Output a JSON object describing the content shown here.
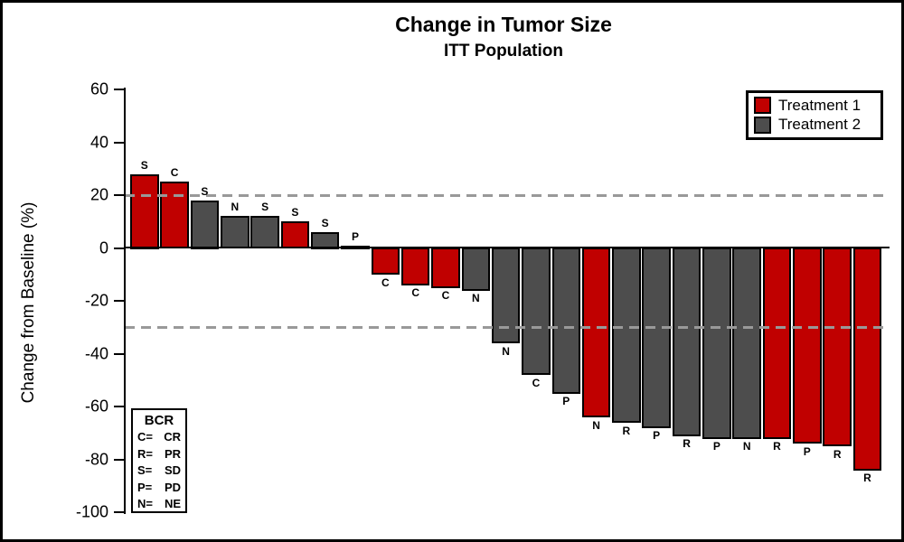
{
  "header": {
    "title": "Change in Tumor Size",
    "subtitle": "ITT Population"
  },
  "axes": {
    "y_label": "Change from Baseline (%)"
  },
  "legend": {
    "items": [
      {
        "label": "Treatment 1",
        "color": "#C00000"
      },
      {
        "label": "Treatment 2",
        "color": "#4D4D4D"
      }
    ]
  },
  "bcr_legend": {
    "title": "BCR",
    "rows": [
      {
        "code": "C=",
        "meaning": "CR"
      },
      {
        "code": "R=",
        "meaning": "PR"
      },
      {
        "code": "S=",
        "meaning": "SD"
      },
      {
        "code": "P=",
        "meaning": "PD"
      },
      {
        "code": "N=",
        "meaning": "NE"
      }
    ]
  },
  "chart_data": {
    "type": "bar",
    "title": "Change in Tumor Size",
    "subtitle": "ITT Population",
    "ylabel": "Change from Baseline (%)",
    "ylim": [
      -100,
      60
    ],
    "yticks": [
      60,
      40,
      20,
      0,
      -20,
      -40,
      -60,
      -80,
      -100
    ],
    "reference_lines": [
      20,
      -30
    ],
    "grid": "off",
    "legend_position": "top-right",
    "series_colors": {
      "Treatment 1": "#C00000",
      "Treatment 2": "#4D4D4D"
    },
    "bars": [
      {
        "label": "S",
        "value": 28,
        "treatment": "Treatment 1"
      },
      {
        "label": "C",
        "value": 25,
        "treatment": "Treatment 1"
      },
      {
        "label": "S",
        "value": 18,
        "treatment": "Treatment 2"
      },
      {
        "label": "N",
        "value": 12,
        "treatment": "Treatment 2"
      },
      {
        "label": "S",
        "value": 12,
        "treatment": "Treatment 2"
      },
      {
        "label": "S",
        "value": 10,
        "treatment": "Treatment 1"
      },
      {
        "label": "S",
        "value": 6,
        "treatment": "Treatment 2"
      },
      {
        "label": "P",
        "value": 1,
        "treatment": "Treatment 2"
      },
      {
        "label": "C",
        "value": -10,
        "treatment": "Treatment 1"
      },
      {
        "label": "C",
        "value": -14,
        "treatment": "Treatment 1"
      },
      {
        "label": "C",
        "value": -15,
        "treatment": "Treatment 1"
      },
      {
        "label": "N",
        "value": -16,
        "treatment": "Treatment 2"
      },
      {
        "label": "N",
        "value": -36,
        "treatment": "Treatment 2"
      },
      {
        "label": "C",
        "value": -48,
        "treatment": "Treatment 2"
      },
      {
        "label": "P",
        "value": -55,
        "treatment": "Treatment 2"
      },
      {
        "label": "N",
        "value": -64,
        "treatment": "Treatment 1"
      },
      {
        "label": "R",
        "value": -66,
        "treatment": "Treatment 2"
      },
      {
        "label": "P",
        "value": -68,
        "treatment": "Treatment 2"
      },
      {
        "label": "R",
        "value": -71,
        "treatment": "Treatment 2"
      },
      {
        "label": "P",
        "value": -72,
        "treatment": "Treatment 2"
      },
      {
        "label": "N",
        "value": -72,
        "treatment": "Treatment 2"
      },
      {
        "label": "R",
        "value": -72,
        "treatment": "Treatment 1"
      },
      {
        "label": "P",
        "value": -74,
        "treatment": "Treatment 1"
      },
      {
        "label": "R",
        "value": -75,
        "treatment": "Treatment 1"
      },
      {
        "label": "R",
        "value": -84,
        "treatment": "Treatment 1"
      }
    ]
  }
}
